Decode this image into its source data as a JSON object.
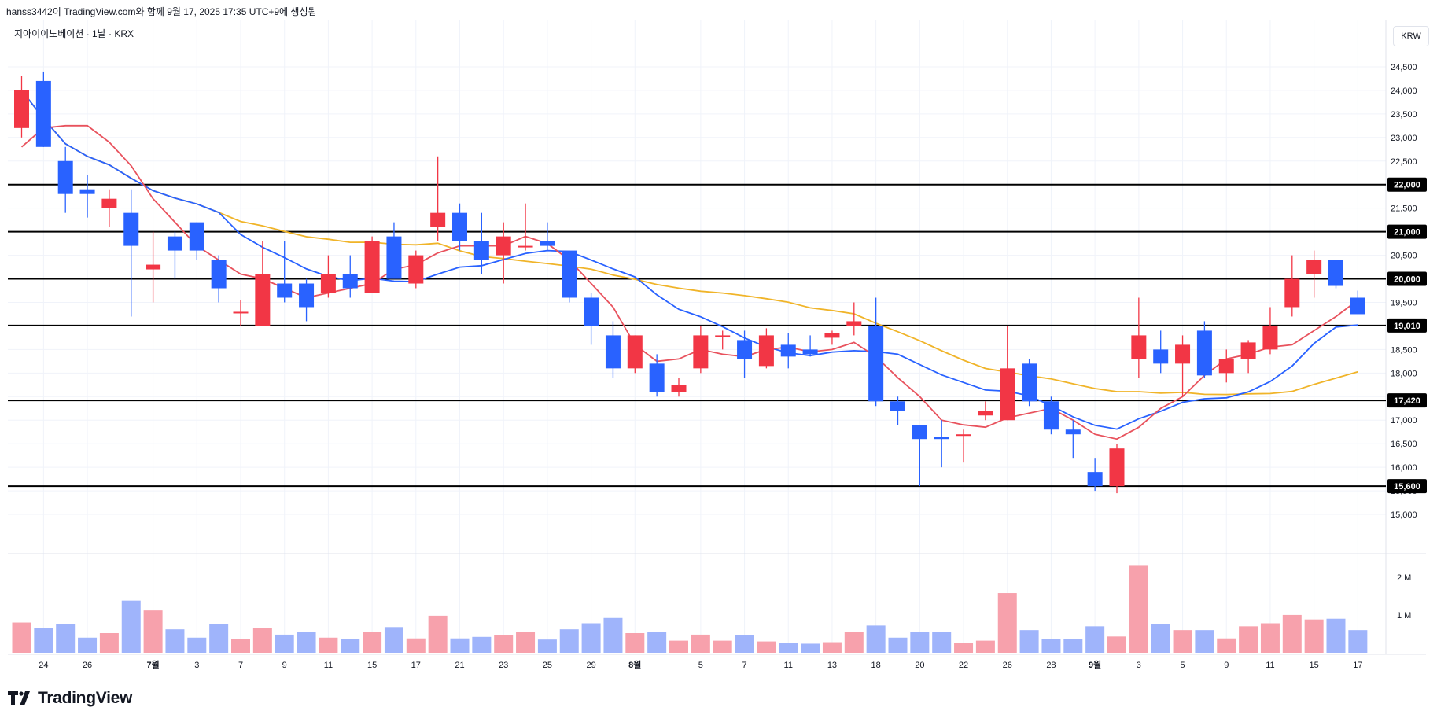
{
  "header": {
    "attribution": "hanss3442이 TradingView.com와 함께 9월 17, 2025 17:35 UTC+9에 생성됨"
  },
  "legend": {
    "symbol": "지아이이노베이션 · 1날 · KRX"
  },
  "currency": "KRW",
  "logo": {
    "text": "TradingView"
  },
  "colors": {
    "up": "#f23645",
    "down": "#2962ff",
    "ma_short": "#e8525d",
    "ma_mid": "#2962ff",
    "ma_long": "#f0b429",
    "vol_up": "#f7a1ac",
    "vol_down": "#9fb4fb"
  },
  "chart_data": {
    "type": "candlestick",
    "y_range": [
      14400,
      25000
    ],
    "x_tick_labels": [
      "24",
      "26",
      "7월",
      "3",
      "7",
      "9",
      "11",
      "15",
      "17",
      "21",
      "23",
      "25",
      "29",
      "8월",
      "5",
      "7",
      "11",
      "13",
      "18",
      "20",
      "22",
      "26",
      "28",
      "9월",
      "3",
      "5",
      "9",
      "11",
      "15",
      "17"
    ],
    "price_ticks": [
      "15,000",
      "15,500",
      "16,000",
      "16,500",
      "17,000",
      "17,500",
      "18,000",
      "18,500",
      "19,000",
      "19,500",
      "20,000",
      "20,500",
      "21,000",
      "21,500",
      "22,000",
      "22,500",
      "23,000",
      "23,500",
      "24,000",
      "24,500"
    ],
    "horizontal_levels": [
      {
        "value": 22000,
        "label": "22,000"
      },
      {
        "value": 21000,
        "label": "21,000"
      },
      {
        "value": 20000,
        "label": "20,000"
      },
      {
        "value": 19010,
        "label": "19,010"
      },
      {
        "value": 17420,
        "label": "17,420"
      },
      {
        "value": 15600,
        "label": "15,600"
      }
    ],
    "candles": [
      {
        "date": "06-23",
        "o": 23200,
        "h": 24300,
        "l": 23000,
        "c": 24000
      },
      {
        "date": "06-24",
        "o": 24200,
        "h": 24400,
        "l": 22800,
        "c": 22800
      },
      {
        "date": "06-25",
        "o": 22500,
        "h": 22800,
        "l": 21400,
        "c": 21800
      },
      {
        "date": "06-26",
        "o": 21900,
        "h": 22200,
        "l": 21300,
        "c": 21800
      },
      {
        "date": "06-27",
        "o": 21500,
        "h": 21900,
        "l": 21100,
        "c": 21700
      },
      {
        "date": "06-30",
        "o": 21400,
        "h": 21900,
        "l": 19200,
        "c": 20700
      },
      {
        "date": "07-01",
        "o": 20200,
        "h": 21000,
        "l": 19500,
        "c": 20300
      },
      {
        "date": "07-02",
        "o": 20900,
        "h": 21000,
        "l": 20000,
        "c": 20600
      },
      {
        "date": "07-03",
        "o": 21200,
        "h": 21200,
        "l": 20400,
        "c": 20600
      },
      {
        "date": "07-04",
        "o": 20400,
        "h": 20500,
        "l": 19500,
        "c": 19800
      },
      {
        "date": "07-07",
        "o": 19300,
        "h": 19550,
        "l": 19000,
        "c": 19300
      },
      {
        "date": "07-08",
        "o": 19000,
        "h": 20800,
        "l": 19000,
        "c": 20100
      },
      {
        "date": "07-09",
        "o": 19900,
        "h": 20800,
        "l": 19500,
        "c": 19600
      },
      {
        "date": "07-10",
        "o": 19900,
        "h": 20000,
        "l": 19100,
        "c": 19400
      },
      {
        "date": "07-11",
        "o": 19700,
        "h": 20500,
        "l": 19600,
        "c": 20100
      },
      {
        "date": "07-14",
        "o": 20100,
        "h": 20500,
        "l": 19600,
        "c": 19800
      },
      {
        "date": "07-15",
        "o": 19700,
        "h": 20900,
        "l": 19700,
        "c": 20800
      },
      {
        "date": "07-16",
        "o": 20900,
        "h": 21200,
        "l": 20000,
        "c": 20000
      },
      {
        "date": "07-17",
        "o": 19900,
        "h": 20600,
        "l": 19800,
        "c": 20500
      },
      {
        "date": "07-18",
        "o": 21100,
        "h": 22600,
        "l": 20800,
        "c": 21400
      },
      {
        "date": "07-21",
        "o": 21400,
        "h": 21600,
        "l": 20600,
        "c": 20800
      },
      {
        "date": "07-22",
        "o": 20800,
        "h": 21400,
        "l": 20100,
        "c": 20400
      },
      {
        "date": "07-23",
        "o": 20500,
        "h": 21200,
        "l": 19900,
        "c": 20900
      },
      {
        "date": "07-24",
        "o": 20700,
        "h": 21600,
        "l": 20600,
        "c": 20700
      },
      {
        "date": "07-25",
        "o": 20800,
        "h": 21200,
        "l": 20600,
        "c": 20700
      },
      {
        "date": "07-28",
        "o": 20600,
        "h": 20600,
        "l": 19500,
        "c": 19600
      },
      {
        "date": "07-29",
        "o": 19600,
        "h": 19700,
        "l": 18600,
        "c": 19000
      },
      {
        "date": "07-30",
        "o": 18800,
        "h": 19100,
        "l": 17900,
        "c": 18100
      },
      {
        "date": "07-31",
        "o": 18100,
        "h": 18800,
        "l": 18000,
        "c": 18800
      },
      {
        "date": "08-01",
        "o": 18200,
        "h": 18400,
        "l": 17500,
        "c": 17600
      },
      {
        "date": "08-04",
        "o": 17600,
        "h": 17900,
        "l": 17500,
        "c": 17750
      },
      {
        "date": "08-05",
        "o": 18100,
        "h": 19000,
        "l": 18000,
        "c": 18800
      },
      {
        "date": "08-06",
        "o": 18800,
        "h": 18900,
        "l": 18500,
        "c": 18800
      },
      {
        "date": "08-07",
        "o": 18700,
        "h": 18900,
        "l": 17900,
        "c": 18300
      },
      {
        "date": "08-08",
        "o": 18150,
        "h": 18950,
        "l": 18100,
        "c": 18800
      },
      {
        "date": "08-11",
        "o": 18600,
        "h": 18850,
        "l": 18100,
        "c": 18350
      },
      {
        "date": "08-12",
        "o": 18500,
        "h": 18800,
        "l": 18350,
        "c": 18400
      },
      {
        "date": "08-13",
        "o": 18750,
        "h": 18900,
        "l": 18600,
        "c": 18850
      },
      {
        "date": "08-14",
        "o": 19000,
        "h": 19500,
        "l": 18800,
        "c": 19100
      },
      {
        "date": "08-18",
        "o": 19000,
        "h": 19600,
        "l": 17300,
        "c": 17400
      },
      {
        "date": "08-19",
        "o": 17400,
        "h": 17500,
        "l": 16900,
        "c": 17200
      },
      {
        "date": "08-20",
        "o": 16900,
        "h": 16900,
        "l": 15600,
        "c": 16600
      },
      {
        "date": "08-21",
        "o": 16650,
        "h": 17000,
        "l": 16000,
        "c": 16600
      },
      {
        "date": "08-22",
        "o": 16700,
        "h": 16800,
        "l": 16100,
        "c": 16700
      },
      {
        "date": "08-25",
        "o": 17100,
        "h": 17400,
        "l": 17000,
        "c": 17200
      },
      {
        "date": "08-26",
        "o": 17000,
        "h": 19000,
        "l": 17000,
        "c": 18100
      },
      {
        "date": "08-27",
        "o": 18200,
        "h": 18300,
        "l": 17300,
        "c": 17400
      },
      {
        "date": "08-28",
        "o": 17400,
        "h": 17500,
        "l": 16700,
        "c": 16800
      },
      {
        "date": "08-29",
        "o": 16800,
        "h": 17000,
        "l": 16200,
        "c": 16700
      },
      {
        "date": "09-01",
        "o": 15900,
        "h": 16200,
        "l": 15500,
        "c": 15600
      },
      {
        "date": "09-02",
        "o": 15600,
        "h": 16500,
        "l": 15450,
        "c": 16400
      },
      {
        "date": "09-03",
        "o": 18300,
        "h": 19600,
        "l": 17900,
        "c": 18800
      },
      {
        "date": "09-04",
        "o": 18500,
        "h": 18900,
        "l": 18000,
        "c": 18200
      },
      {
        "date": "09-05",
        "o": 18200,
        "h": 18800,
        "l": 17500,
        "c": 18600
      },
      {
        "date": "09-08",
        "o": 18900,
        "h": 19100,
        "l": 17900,
        "c": 17950
      },
      {
        "date": "09-09",
        "o": 18000,
        "h": 18500,
        "l": 17800,
        "c": 18300
      },
      {
        "date": "09-10",
        "o": 18300,
        "h": 18700,
        "l": 18000,
        "c": 18650
      },
      {
        "date": "09-11",
        "o": 18500,
        "h": 19400,
        "l": 18400,
        "c": 19000
      },
      {
        "date": "09-12",
        "o": 19400,
        "h": 20500,
        "l": 19200,
        "c": 20000
      },
      {
        "date": "09-15",
        "o": 20100,
        "h": 20600,
        "l": 19600,
        "c": 20400
      },
      {
        "date": "09-16",
        "o": 20400,
        "h": 20400,
        "l": 19800,
        "c": 19850
      },
      {
        "date": "09-17",
        "o": 19600,
        "h": 19750,
        "l": 19250,
        "c": 19250
      }
    ],
    "volume_ticks": [
      "2 M",
      "1 M"
    ],
    "volumes": [
      0.8,
      0.65,
      0.75,
      0.4,
      0.52,
      1.38,
      1.12,
      0.62,
      0.4,
      0.75,
      0.36,
      0.65,
      0.48,
      0.55,
      0.4,
      0.36,
      0.55,
      0.68,
      0.38,
      0.98,
      0.38,
      0.42,
      0.46,
      0.55,
      0.35,
      0.62,
      0.78,
      0.92,
      0.52,
      0.55,
      0.32,
      0.48,
      0.32,
      0.46,
      0.3,
      0.27,
      0.24,
      0.28,
      0.55,
      0.72,
      0.4,
      0.56,
      0.56,
      0.26,
      0.32,
      1.58,
      0.6,
      0.36,
      0.36,
      0.7,
      0.43,
      2.3,
      0.76,
      0.6,
      0.6,
      0.38,
      0.7,
      0.78,
      1.0,
      0.88,
      0.9,
      0.6
    ],
    "ma_short_values": [
      22800,
      23200,
      23250,
      23250,
      22900,
      22400,
      21700,
      21200,
      20700,
      20400,
      20100,
      20000,
      19800,
      19600,
      19700,
      19800,
      19900,
      20200,
      20300,
      20550,
      20700,
      20700,
      20700,
      20900,
      20750,
      20400,
      19900,
      19400,
      18600,
      18250,
      18300,
      18500,
      18400,
      18350,
      18500,
      18550,
      18450,
      18500,
      18650,
      18350,
      17900,
      17500,
      17000,
      16900,
      16850,
      17050,
      17150,
      17250,
      17000,
      16700,
      16600,
      16850,
      17250,
      17500,
      17950,
      18300,
      18400,
      18550,
      18600,
      18900,
      19200,
      19550
    ]
  }
}
